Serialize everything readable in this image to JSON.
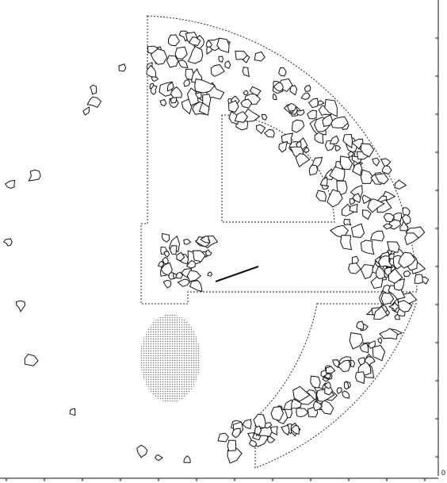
{
  "scale": {
    "origin_label": "0"
  }
}
